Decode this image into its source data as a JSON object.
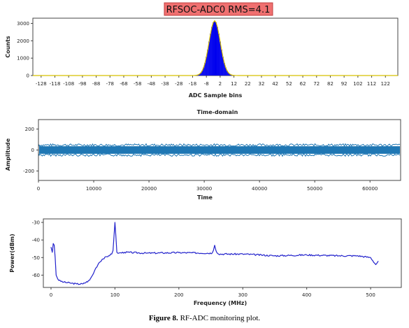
{
  "caption": {
    "label": "Figure 8.",
    "text": "RF-ADC monitoring plot."
  },
  "chart_data": [
    {
      "type": "bar",
      "title": "RFSOC-ADC0 RMS=4.1",
      "title_colors": {
        "background": "#f07070",
        "border": "#c04040",
        "text": "#111111"
      },
      "xlabel": "ADC Sample bins",
      "ylabel": "Counts",
      "xlim": [
        -134,
        131
      ],
      "ylim": [
        0,
        3300
      ],
      "xticks": [
        -128,
        -118,
        -108,
        -98,
        -88,
        -78,
        -68,
        -58,
        -48,
        -38,
        -28,
        -18,
        -8,
        2,
        12,
        22,
        32,
        42,
        52,
        62,
        72,
        82,
        92,
        102,
        112,
        122
      ],
      "yticks": [
        0,
        1000,
        2000,
        3000
      ],
      "color": "#0000ee",
      "edge_color": "#d8c000",
      "distribution": {
        "shape": "gaussian",
        "center": -2,
        "sigma": 4.1,
        "peak": 3150
      }
    },
    {
      "type": "line",
      "title": "Time-domain",
      "xlabel": "Time",
      "ylabel": "Amplitude",
      "xlim": [
        0,
        65536
      ],
      "ylim": [
        -290,
        290
      ],
      "xticks": [
        0,
        10000,
        20000,
        30000,
        40000,
        50000,
        60000
      ],
      "yticks": [
        200,
        0,
        -200
      ],
      "color": "#1f77b4",
      "band": {
        "mean": 0,
        "lower": -36,
        "upper": 36
      }
    },
    {
      "type": "line",
      "xlabel": "Frequency (MHz)",
      "ylabel": "Power(dBm)",
      "xlim": [
        -12,
        548
      ],
      "ylim": [
        -67,
        -28
      ],
      "xticks": [
        0,
        100,
        200,
        300,
        400,
        500
      ],
      "yticks": [
        -30,
        -40,
        -50,
        -60
      ],
      "color": "#2222cc",
      "x": [
        0,
        2,
        3.5,
        5,
        6.5,
        8,
        12,
        20,
        30,
        40,
        50,
        60,
        65,
        70,
        75,
        80,
        90,
        95,
        97,
        98.5,
        100,
        101.5,
        103,
        106,
        115,
        150,
        200,
        252,
        254,
        256,
        258,
        262,
        300,
        350,
        400,
        450,
        480,
        500,
        508,
        512
      ],
      "y": [
        -44,
        -47,
        -42,
        -43,
        -50,
        -60,
        -63,
        -64,
        -64.5,
        -65,
        -65,
        -63,
        -60,
        -56,
        -53,
        -51,
        -49,
        -48,
        -46,
        -38,
        -30,
        -38,
        -47,
        -47.5,
        -47,
        -47.5,
        -47.2,
        -47.5,
        -46,
        -43,
        -46,
        -48,
        -48,
        -49,
        -48.5,
        -49,
        -49,
        -50,
        -54,
        -52
      ]
    }
  ]
}
